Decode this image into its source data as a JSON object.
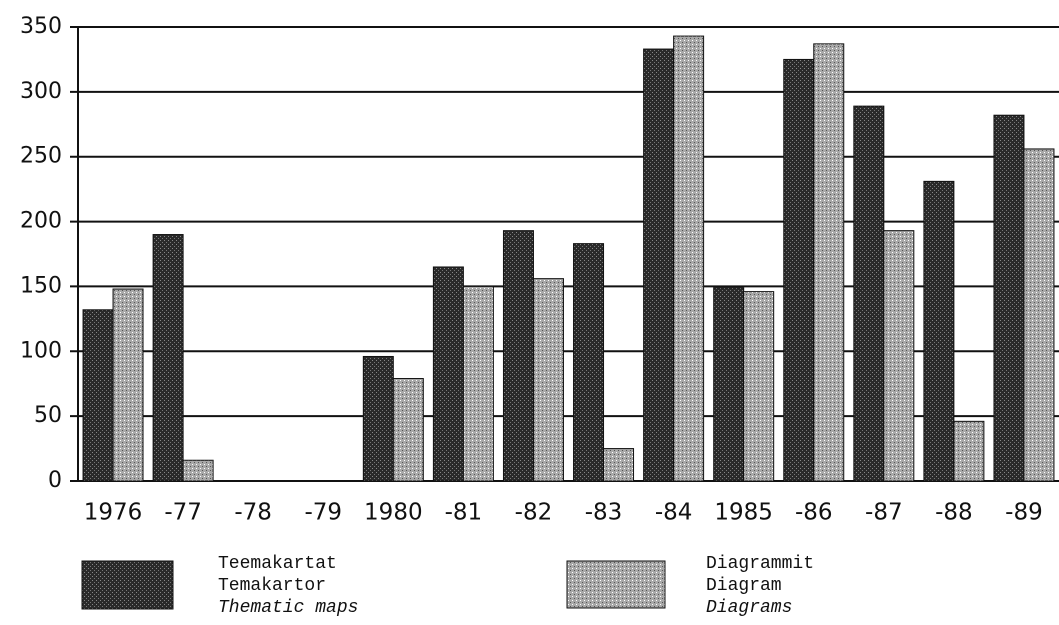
{
  "chart_data": {
    "type": "bar",
    "categories": [
      "1976",
      "-77",
      "-78",
      "-79",
      "1980",
      "-81",
      "-82",
      "-83",
      "-84",
      "1985",
      "-86",
      "-87",
      "-88",
      "-89"
    ],
    "series": [
      {
        "name": "Thematic maps",
        "name_fi": "Teemakartat",
        "name_sv": "Temakartor",
        "color": "#2a2a2a",
        "values": [
          132,
          190,
          null,
          null,
          96,
          165,
          193,
          183,
          333,
          149,
          325,
          289,
          231,
          282
        ]
      },
      {
        "name": "Diagrams",
        "name_fi": "Diagrammit",
        "name_sv": "Diagram",
        "color": "#a8a8a8",
        "values": [
          148,
          16,
          null,
          null,
          79,
          150,
          156,
          25,
          343,
          146,
          337,
          193,
          46,
          256
        ]
      }
    ],
    "ylim": [
      0,
      350
    ],
    "yticks": [
      0,
      50,
      100,
      150,
      200,
      250,
      300,
      350
    ],
    "grid": true
  }
}
